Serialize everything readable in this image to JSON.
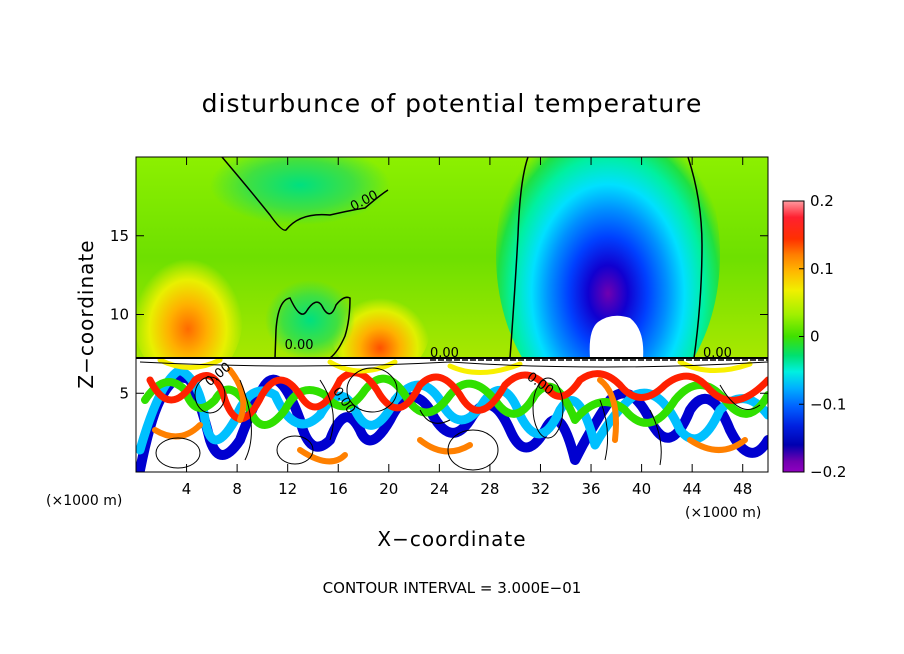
{
  "chart_data": {
    "type": "heatmap",
    "title": "disturbunce of potential temperature",
    "xlabel": "X−coordinate",
    "ylabel": "Z−coordinate",
    "x_unit_left": "(×1000 m)",
    "x_unit_right": "(×1000 m)",
    "xlim": [
      0,
      50
    ],
    "ylim": [
      0,
      20
    ],
    "xticks": [
      4,
      8,
      12,
      16,
      20,
      24,
      28,
      32,
      36,
      40,
      44,
      48
    ],
    "yticks": [
      5,
      10,
      15
    ],
    "colorbar": {
      "min": -0.2,
      "max": 0.2,
      "ticks": [
        0.2,
        0.1,
        0,
        -0.1,
        -0.2
      ],
      "tick_labels": [
        "0.2",
        "0.1",
        "0",
        "−0.1",
        "−0.2"
      ]
    },
    "contour_labels": [
      {
        "text": "0.00",
        "x": 18.2,
        "z": 17.0
      },
      {
        "text": "0.00",
        "x": 12.9,
        "z": 7.8
      },
      {
        "text": "0.00",
        "x": 24.4,
        "z": 7.3
      },
      {
        "text": "0.00",
        "x": 46.0,
        "z": 7.3
      },
      {
        "text": "0.00",
        "x": 6.7,
        "z": 6.0
      },
      {
        "text": "0.00",
        "x": 31.8,
        "z": 5.4
      },
      {
        "text": "0.00",
        "x": 16.2,
        "z": 4.4
      }
    ],
    "contour_interval_text": "CONTOUR INTERVAL = 3.000E−01"
  }
}
